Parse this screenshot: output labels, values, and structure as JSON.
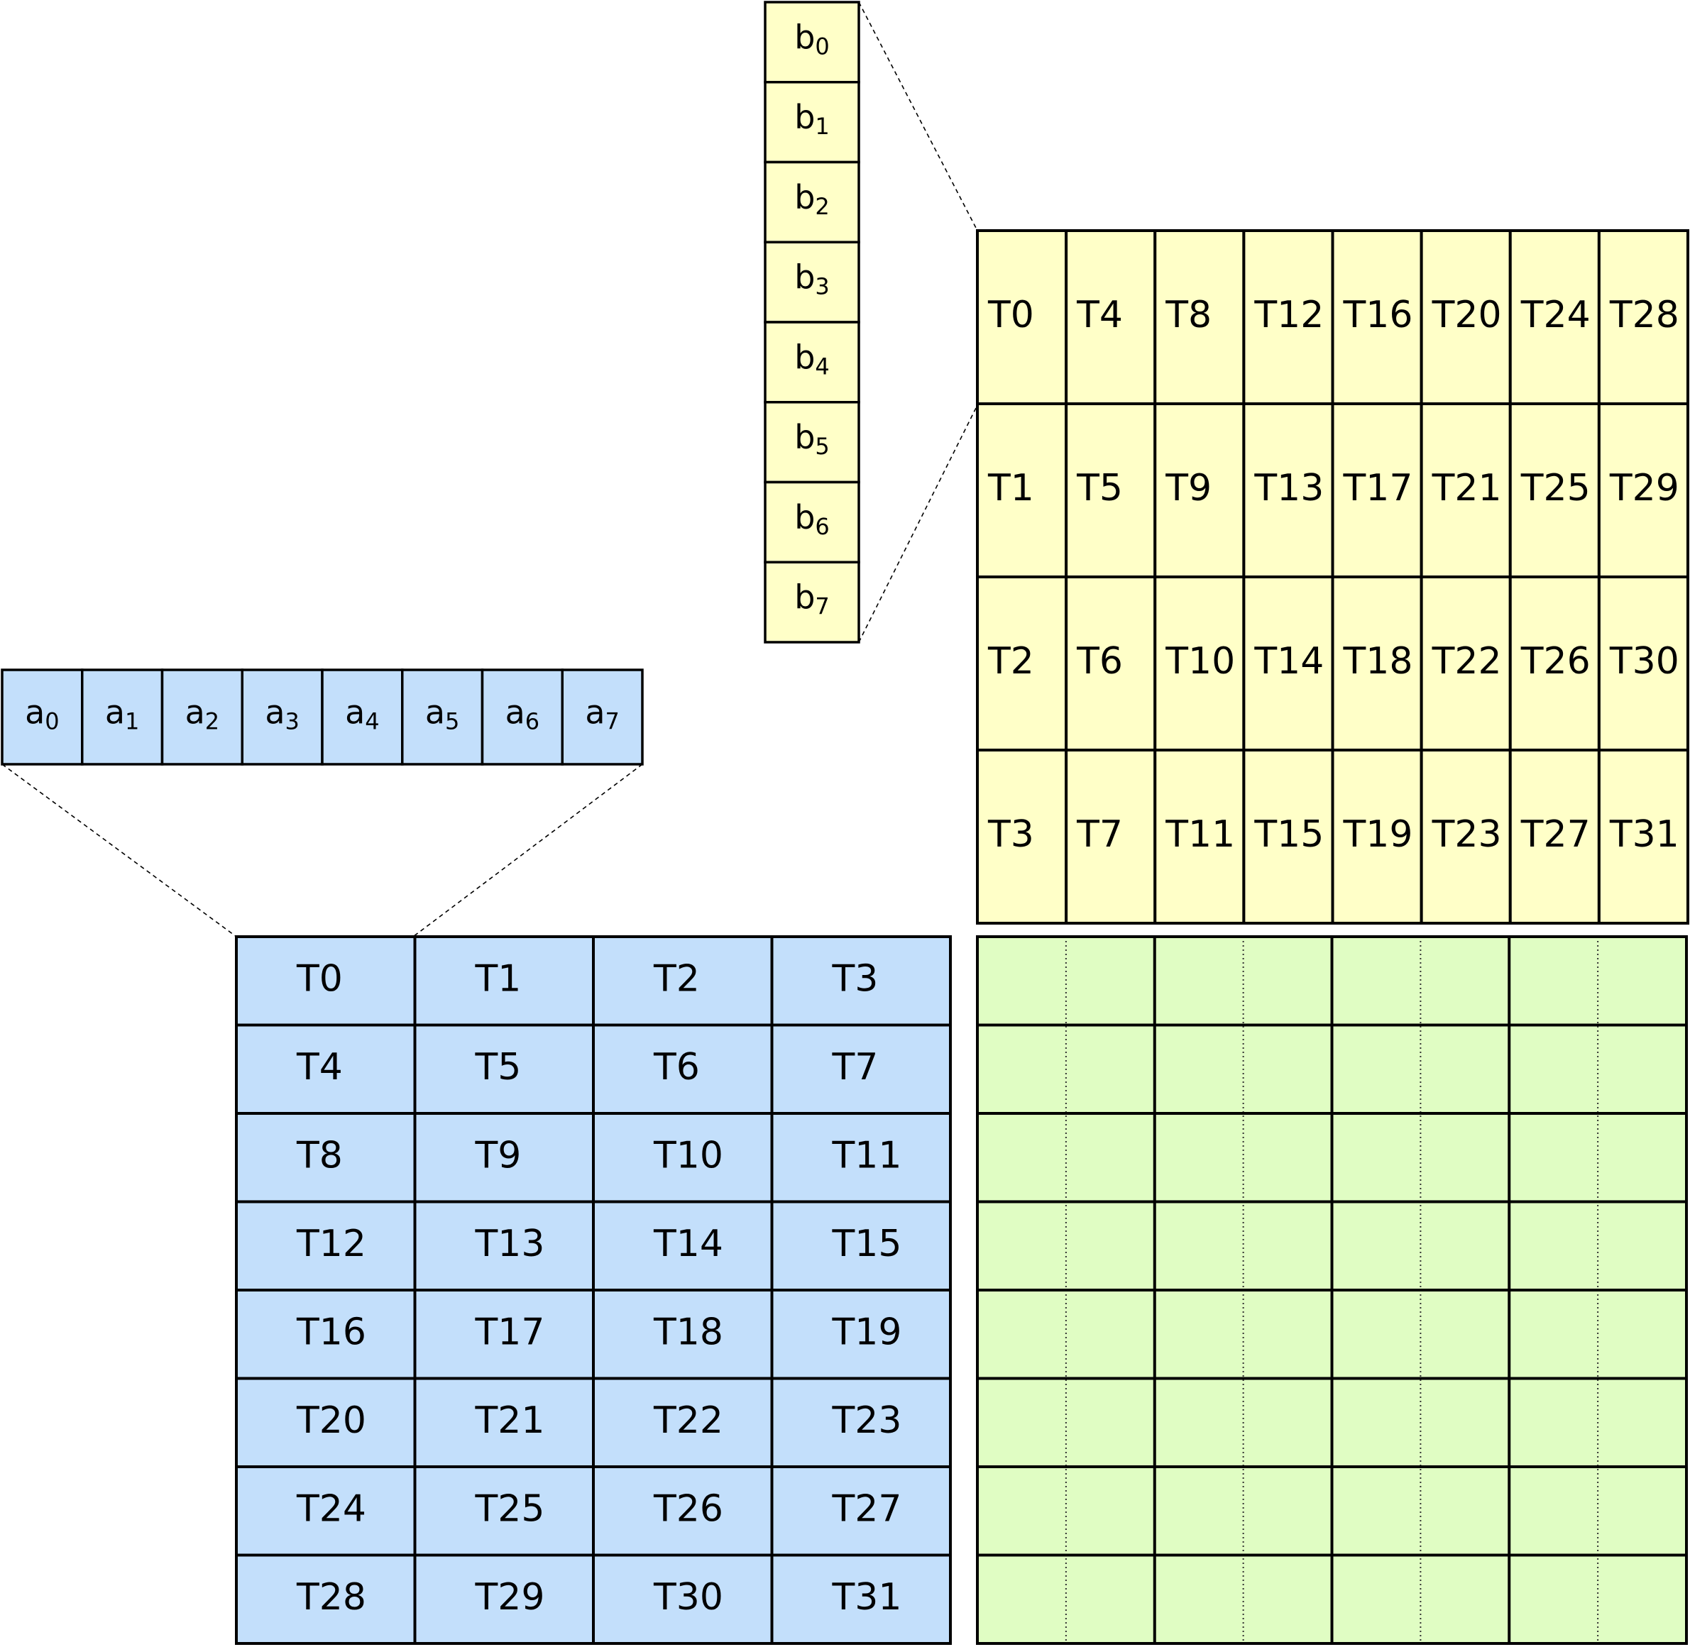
{
  "colors": {
    "a_fill": "#c3dffb",
    "b_fill": "#ffffc8",
    "c_fill": "#e0fdc3",
    "line": "#000000"
  },
  "vector_a": {
    "base": "a",
    "subscripts": [
      "0",
      "1",
      "2",
      "3",
      "4",
      "5",
      "6",
      "7"
    ]
  },
  "vector_b": {
    "base": "b",
    "subscripts": [
      "0",
      "1",
      "2",
      "3",
      "4",
      "5",
      "6",
      "7"
    ]
  },
  "matrix_b_threads": [
    [
      "T0",
      "T4",
      "T8",
      "T12",
      "T16",
      "T20",
      "T24",
      "T28"
    ],
    [
      "T1",
      "T5",
      "T9",
      "T13",
      "T17",
      "T21",
      "T25",
      "T29"
    ],
    [
      "T2",
      "T6",
      "T10",
      "T14",
      "T18",
      "T22",
      "T26",
      "T30"
    ],
    [
      "T3",
      "T7",
      "T11",
      "T15",
      "T19",
      "T23",
      "T27",
      "T31"
    ]
  ],
  "matrix_a_threads": [
    [
      "T0",
      "T1",
      "T2",
      "T3"
    ],
    [
      "T4",
      "T5",
      "T6",
      "T7"
    ],
    [
      "T8",
      "T9",
      "T10",
      "T11"
    ],
    [
      "T12",
      "T13",
      "T14",
      "T15"
    ],
    [
      "T16",
      "T17",
      "T18",
      "T19"
    ],
    [
      "T20",
      "T21",
      "T22",
      "T23"
    ],
    [
      "T24",
      "T25",
      "T26",
      "T27"
    ],
    [
      "T28",
      "T29",
      "T30",
      "T31"
    ]
  ],
  "matrix_c": {
    "rows": 8,
    "cols": 8
  }
}
